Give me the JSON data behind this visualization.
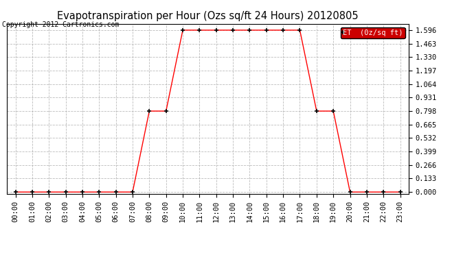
{
  "title": "Evapotranspiration per Hour (Ozs sq/ft 24 Hours) 20120805",
  "copyright": "Copyright 2012 Cartronics.com",
  "legend_label": "ET  (0z/sq ft)",
  "background_color": "#ffffff",
  "plot_bg_color": "#ffffff",
  "line_color": "red",
  "marker_color": "black",
  "hours": [
    "00:00",
    "01:00",
    "02:00",
    "03:00",
    "04:00",
    "05:00",
    "06:00",
    "07:00",
    "08:00",
    "09:00",
    "10:00",
    "11:00",
    "12:00",
    "13:00",
    "14:00",
    "15:00",
    "16:00",
    "17:00",
    "18:00",
    "19:00",
    "20:00",
    "21:00",
    "22:00",
    "23:00"
  ],
  "values": [
    0.0,
    0.0,
    0.0,
    0.0,
    0.0,
    0.0,
    0.0,
    0.0,
    0.798,
    0.798,
    1.596,
    1.596,
    1.596,
    1.596,
    1.596,
    1.596,
    1.596,
    1.596,
    0.798,
    0.798,
    0.0,
    0.0,
    0.0,
    0.0
  ],
  "yticks": [
    0.0,
    0.133,
    0.266,
    0.399,
    0.532,
    0.665,
    0.798,
    0.931,
    1.064,
    1.197,
    1.33,
    1.463,
    1.596
  ],
  "ylim": [
    -0.02,
    1.66
  ],
  "grid_color": "#aaaaaa",
  "legend_bg": "#cc0000",
  "legend_text_color": "white",
  "title_fontsize": 10.5,
  "tick_fontsize": 7.5,
  "copyright_fontsize": 7
}
